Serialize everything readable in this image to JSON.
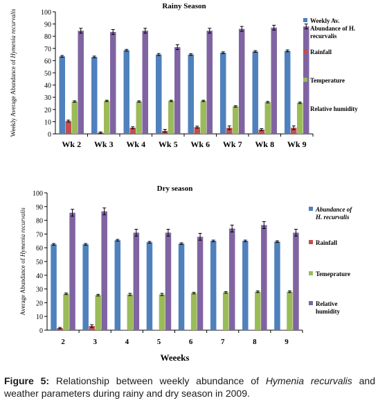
{
  "chart_data": [
    {
      "type": "bar",
      "title": "Rainy Season",
      "ylabel_prefix": "Weekly Average Abundance of ",
      "ylabel_italic": "Hymenia recurvalis",
      "xlabel": "",
      "ylim": [
        0,
        100
      ],
      "yticks": [
        0,
        10,
        20,
        30,
        40,
        50,
        60,
        70,
        80,
        90,
        100
      ],
      "grid": false,
      "legend_position": "right",
      "categories": [
        "Wk 2",
        "Wk 3",
        "Wk 4",
        "Wk 5",
        "Wk 6",
        "Wk 7",
        "Wk 8",
        "Wk 9"
      ],
      "series": [
        {
          "name": "Weekly Av. Abundance of H. recurvalis",
          "legend_lines": [
            "Weekly Av.",
            "Abundance of H.",
            "recurvalis"
          ],
          "color": "#4f81bd",
          "values": [
            63.5,
            63,
            68.5,
            65,
            65,
            66.5,
            67.5,
            68
          ],
          "errors": [
            0.7,
            0.7,
            0.7,
            0.8,
            0.7,
            0.7,
            0.7,
            0.8
          ]
        },
        {
          "name": "Rainfall",
          "legend_lines": [
            "Rainfall"
          ],
          "color": "#c0504d",
          "values": [
            10.5,
            1,
            5,
            2.5,
            5.5,
            5,
            3.5,
            5
          ],
          "errors": [
            0.8,
            0.6,
            0.8,
            1.2,
            0.8,
            1.5,
            0.8,
            1.5
          ]
        },
        {
          "name": "Temperature",
          "legend_lines": [
            "Temperature"
          ],
          "color": "#9bbb59",
          "values": [
            26.5,
            27,
            26.5,
            27,
            27,
            22.5,
            26,
            25.5
          ],
          "errors": [
            0.6,
            0.6,
            0.6,
            0.6,
            0.6,
            0.6,
            0.6,
            0.6
          ]
        },
        {
          "name": "Relative humidity",
          "legend_lines": [
            "Relative humidity"
          ],
          "color": "#8064a2",
          "values": [
            84.5,
            83.5,
            84.5,
            71,
            84.5,
            86,
            87,
            88
          ],
          "errors": [
            2,
            2,
            2,
            2,
            2,
            2,
            2,
            2
          ]
        }
      ]
    },
    {
      "type": "bar",
      "title": "Dry season",
      "ylabel_prefix": "Average Abundance of ",
      "ylabel_italic": "Hymenia recurvalis",
      "xlabel": "Weeeks",
      "ylim": [
        0,
        100
      ],
      "yticks": [
        0,
        10,
        20,
        30,
        40,
        50,
        60,
        70,
        80,
        90,
        100
      ],
      "grid": false,
      "legend_position": "right",
      "categories": [
        "2",
        "3",
        "4",
        "5",
        "6",
        "7",
        "8",
        "9"
      ],
      "series": [
        {
          "name": "Abundance of H. recurvalis",
          "legend_lines": [
            "Abundance of",
            "H. recurvalis"
          ],
          "legend_italic": true,
          "color": "#4f81bd",
          "values": [
            62.5,
            62.5,
            65.5,
            64,
            63,
            65,
            65,
            64.5
          ],
          "errors": [
            0.6,
            0.6,
            0.6,
            0.6,
            0.6,
            0.6,
            0.6,
            0.6
          ]
        },
        {
          "name": "Rainfall",
          "legend_lines": [
            "Rainfall"
          ],
          "color": "#c0504d",
          "values": [
            1.5,
            3,
            0.3,
            0.3,
            0.3,
            0.3,
            0.3,
            0.3
          ],
          "errors": [
            0.5,
            1,
            0,
            0,
            0,
            0,
            0,
            0
          ]
        },
        {
          "name": "Temeprature",
          "legend_lines": [
            "Temeprature"
          ],
          "color": "#9bbb59",
          "values": [
            26.5,
            25.5,
            26,
            26,
            27,
            27.5,
            28,
            28
          ],
          "errors": [
            0.6,
            0.6,
            0.8,
            0.8,
            0.6,
            0.6,
            0.6,
            0.6
          ]
        },
        {
          "name": "Relative humidity",
          "legend_lines": [
            "Relative",
            "humidity"
          ],
          "color": "#8064a2",
          "values": [
            85.5,
            86.5,
            71,
            71,
            68,
            74,
            76.5,
            71
          ],
          "errors": [
            2.5,
            2.5,
            2.5,
            2.5,
            2.5,
            2.5,
            2.5,
            2.5
          ]
        }
      ]
    }
  ],
  "caption": {
    "label": "Figure 5:",
    "text_before": " Relationship between weekly abundance of ",
    "species": "Hymenia recurvalis",
    "text_after": " and weather parameters during rainy and dry season in 2009."
  }
}
